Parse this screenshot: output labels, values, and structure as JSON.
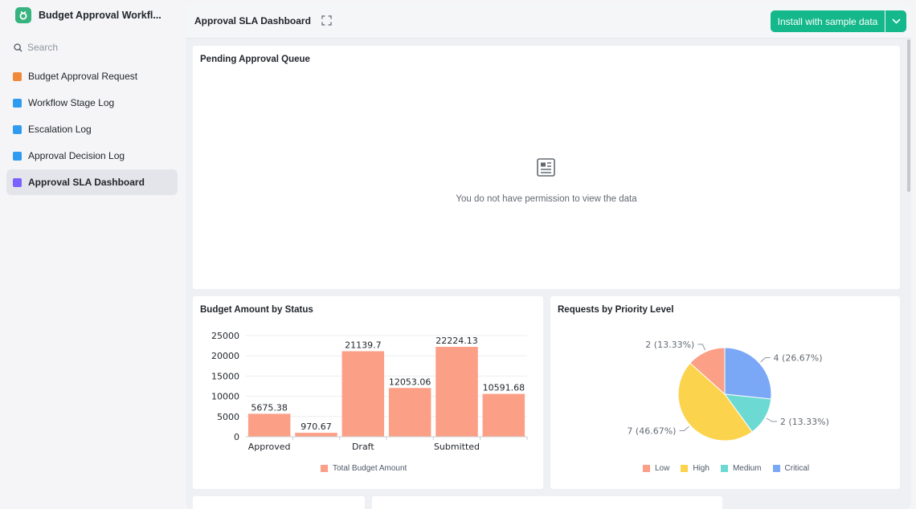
{
  "app": {
    "title": "Budget Approval Workfl..."
  },
  "search": {
    "placeholder": "Search"
  },
  "sidebar": {
    "items": [
      {
        "label": "Budget Approval Request",
        "icon": "form-icon",
        "color": "#f0883a"
      },
      {
        "label": "Workflow Stage Log",
        "icon": "table-icon",
        "color": "#2f9bf0"
      },
      {
        "label": "Escalation Log",
        "icon": "table-icon",
        "color": "#2f9bf0"
      },
      {
        "label": "Approval Decision Log",
        "icon": "table-icon",
        "color": "#2f9bf0"
      },
      {
        "label": "Approval SLA Dashboard",
        "icon": "dashboard-icon",
        "color": "#7b61ff",
        "active": true
      }
    ]
  },
  "dashboard": {
    "title": "Approval SLA Dashboard",
    "install_label": "Install with sample data"
  },
  "pending_card": {
    "title": "Pending Approval Queue",
    "message": "You do not have permission to view the data"
  },
  "bar_card": {
    "title": "Budget Amount by Status"
  },
  "pie_card": {
    "title": "Requests by Priority Level"
  },
  "colors": {
    "accent": "#14b88a",
    "bar": "#fb9f86"
  },
  "chart_data": [
    {
      "type": "bar",
      "title": "Budget Amount by Status",
      "categories": [
        "Approved",
        "",
        "Draft",
        "",
        "Submitted",
        ""
      ],
      "series": [
        {
          "name": "Total Budget Amount",
          "values": [
            5675.38,
            970.67,
            21139.7,
            12053.06,
            22224.13,
            10591.68
          ]
        }
      ],
      "yticks": [
        0,
        5000,
        10000,
        15000,
        20000,
        25000
      ],
      "ylim": [
        0,
        25000
      ],
      "legend": "bottom"
    },
    {
      "type": "pie",
      "title": "Requests by Priority Level",
      "slices": [
        {
          "name": "Low",
          "value": 2,
          "label": "2 (13.33%)",
          "color": "#fb9f86"
        },
        {
          "name": "High",
          "value": 7,
          "label": "7 (46.67%)",
          "color": "#fcd34d"
        },
        {
          "name": "Medium",
          "value": 2,
          "label": "2 (13.33%)",
          "color": "#6dd9d3"
        },
        {
          "name": "Critical",
          "value": 4,
          "label": "4 (26.67%)",
          "color": "#7ba7f7"
        }
      ],
      "legend": "bottom"
    }
  ]
}
